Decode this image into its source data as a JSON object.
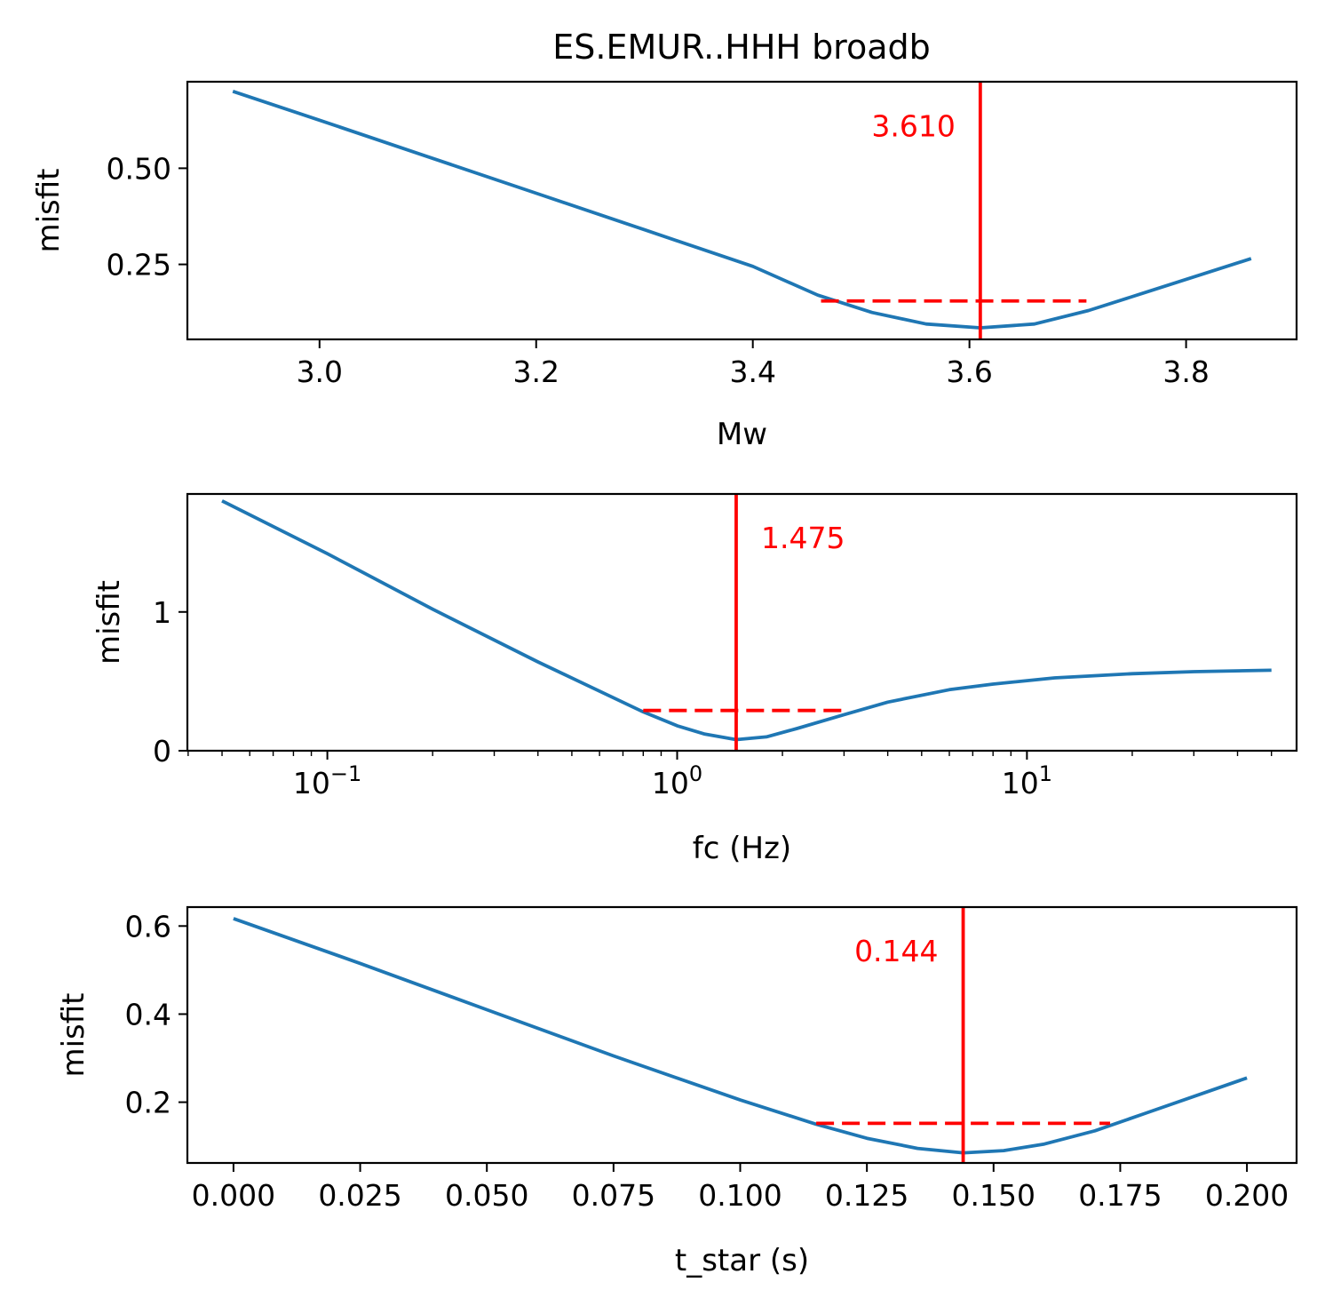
{
  "figure": {
    "title": "ES.EMUR..HHH broadb"
  },
  "colors": {
    "curve": "#1f77b4",
    "best": "#ff0000"
  },
  "chart_data": [
    {
      "type": "line",
      "id": "mw",
      "xlabel": "Mw",
      "ylabel": "misfit",
      "xscale": "linear",
      "xlim": [
        2.878,
        3.902
      ],
      "ylim": [
        0.055,
        0.725
      ],
      "xticks": [
        3.0,
        3.2,
        3.4,
        3.6,
        3.8
      ],
      "xtick_labels": [
        "3.0",
        "3.2",
        "3.4",
        "3.6",
        "3.8"
      ],
      "yticks": [
        0.25,
        0.5
      ],
      "ytick_labels": [
        "0.25",
        "0.50"
      ],
      "series": [
        {
          "x": [
            2.92,
            3.0,
            3.1,
            3.2,
            3.3,
            3.4,
            3.46,
            3.51,
            3.56,
            3.61,
            3.66,
            3.71,
            3.76,
            3.81,
            3.86
          ],
          "y": [
            0.7,
            0.625,
            0.53,
            0.435,
            0.34,
            0.245,
            0.17,
            0.125,
            0.095,
            0.085,
            0.095,
            0.13,
            0.175,
            0.22,
            0.265
          ]
        }
      ],
      "best": {
        "value": 3.61,
        "label": "3.610"
      },
      "error_bar": {
        "x_min": 3.463,
        "x_max": 3.708,
        "y": 0.155
      }
    },
    {
      "type": "line",
      "id": "fc",
      "xlabel": "fc (Hz)",
      "ylabel": "misfit",
      "xscale": "log",
      "xlim": [
        0.0398,
        59.0
      ],
      "ylim": [
        0.0,
        1.85
      ],
      "xticks": [
        0.1,
        1,
        10
      ],
      "xtick_labels": [
        {
          "base": "10",
          "exp": "−1"
        },
        {
          "base": "10",
          "exp": "0"
        },
        {
          "base": "10",
          "exp": "1"
        }
      ],
      "yticks": [
        0,
        1
      ],
      "ytick_labels": [
        "0",
        "1"
      ],
      "series": [
        {
          "x": [
            0.05,
            0.1,
            0.2,
            0.4,
            0.8,
            1.0,
            1.2,
            1.475,
            1.8,
            2.2,
            3.0,
            4.0,
            6.0,
            8.0,
            12.0,
            20.0,
            30.0,
            50.0
          ],
          "y": [
            1.8,
            1.42,
            1.02,
            0.64,
            0.28,
            0.18,
            0.12,
            0.08,
            0.1,
            0.16,
            0.26,
            0.35,
            0.44,
            0.48,
            0.525,
            0.555,
            0.57,
            0.58
          ]
        }
      ],
      "best": {
        "value": 1.475,
        "label": "1.475"
      },
      "error_bar": {
        "x_min": 0.8,
        "x_max": 3.0,
        "y": 0.29
      }
    },
    {
      "type": "line",
      "id": "tstar",
      "xlabel": "t_star (s)",
      "ylabel": "misfit",
      "xscale": "linear",
      "xlim": [
        -0.0091,
        0.2098
      ],
      "ylim": [
        0.062,
        0.643
      ],
      "xticks": [
        0.0,
        0.025,
        0.05,
        0.075,
        0.1,
        0.125,
        0.15,
        0.175,
        0.2
      ],
      "xtick_labels": [
        "0.000",
        "0.025",
        "0.050",
        "0.075",
        "0.100",
        "0.125",
        "0.150",
        "0.175",
        "0.200"
      ],
      "yticks": [
        0.2,
        0.4,
        0.6
      ],
      "ytick_labels": [
        "0.2",
        "0.4",
        "0.6"
      ],
      "series": [
        {
          "x": [
            0.0,
            0.025,
            0.05,
            0.075,
            0.1,
            0.115,
            0.125,
            0.135,
            0.144,
            0.152,
            0.16,
            0.17,
            0.18,
            0.19,
            0.2
          ],
          "y": [
            0.617,
            0.515,
            0.41,
            0.305,
            0.205,
            0.15,
            0.118,
            0.095,
            0.085,
            0.09,
            0.105,
            0.135,
            0.175,
            0.215,
            0.255
          ]
        }
      ],
      "best": {
        "value": 0.144,
        "label": "0.144"
      },
      "error_bar": {
        "x_min": 0.115,
        "x_max": 0.173,
        "y": 0.152
      }
    }
  ]
}
